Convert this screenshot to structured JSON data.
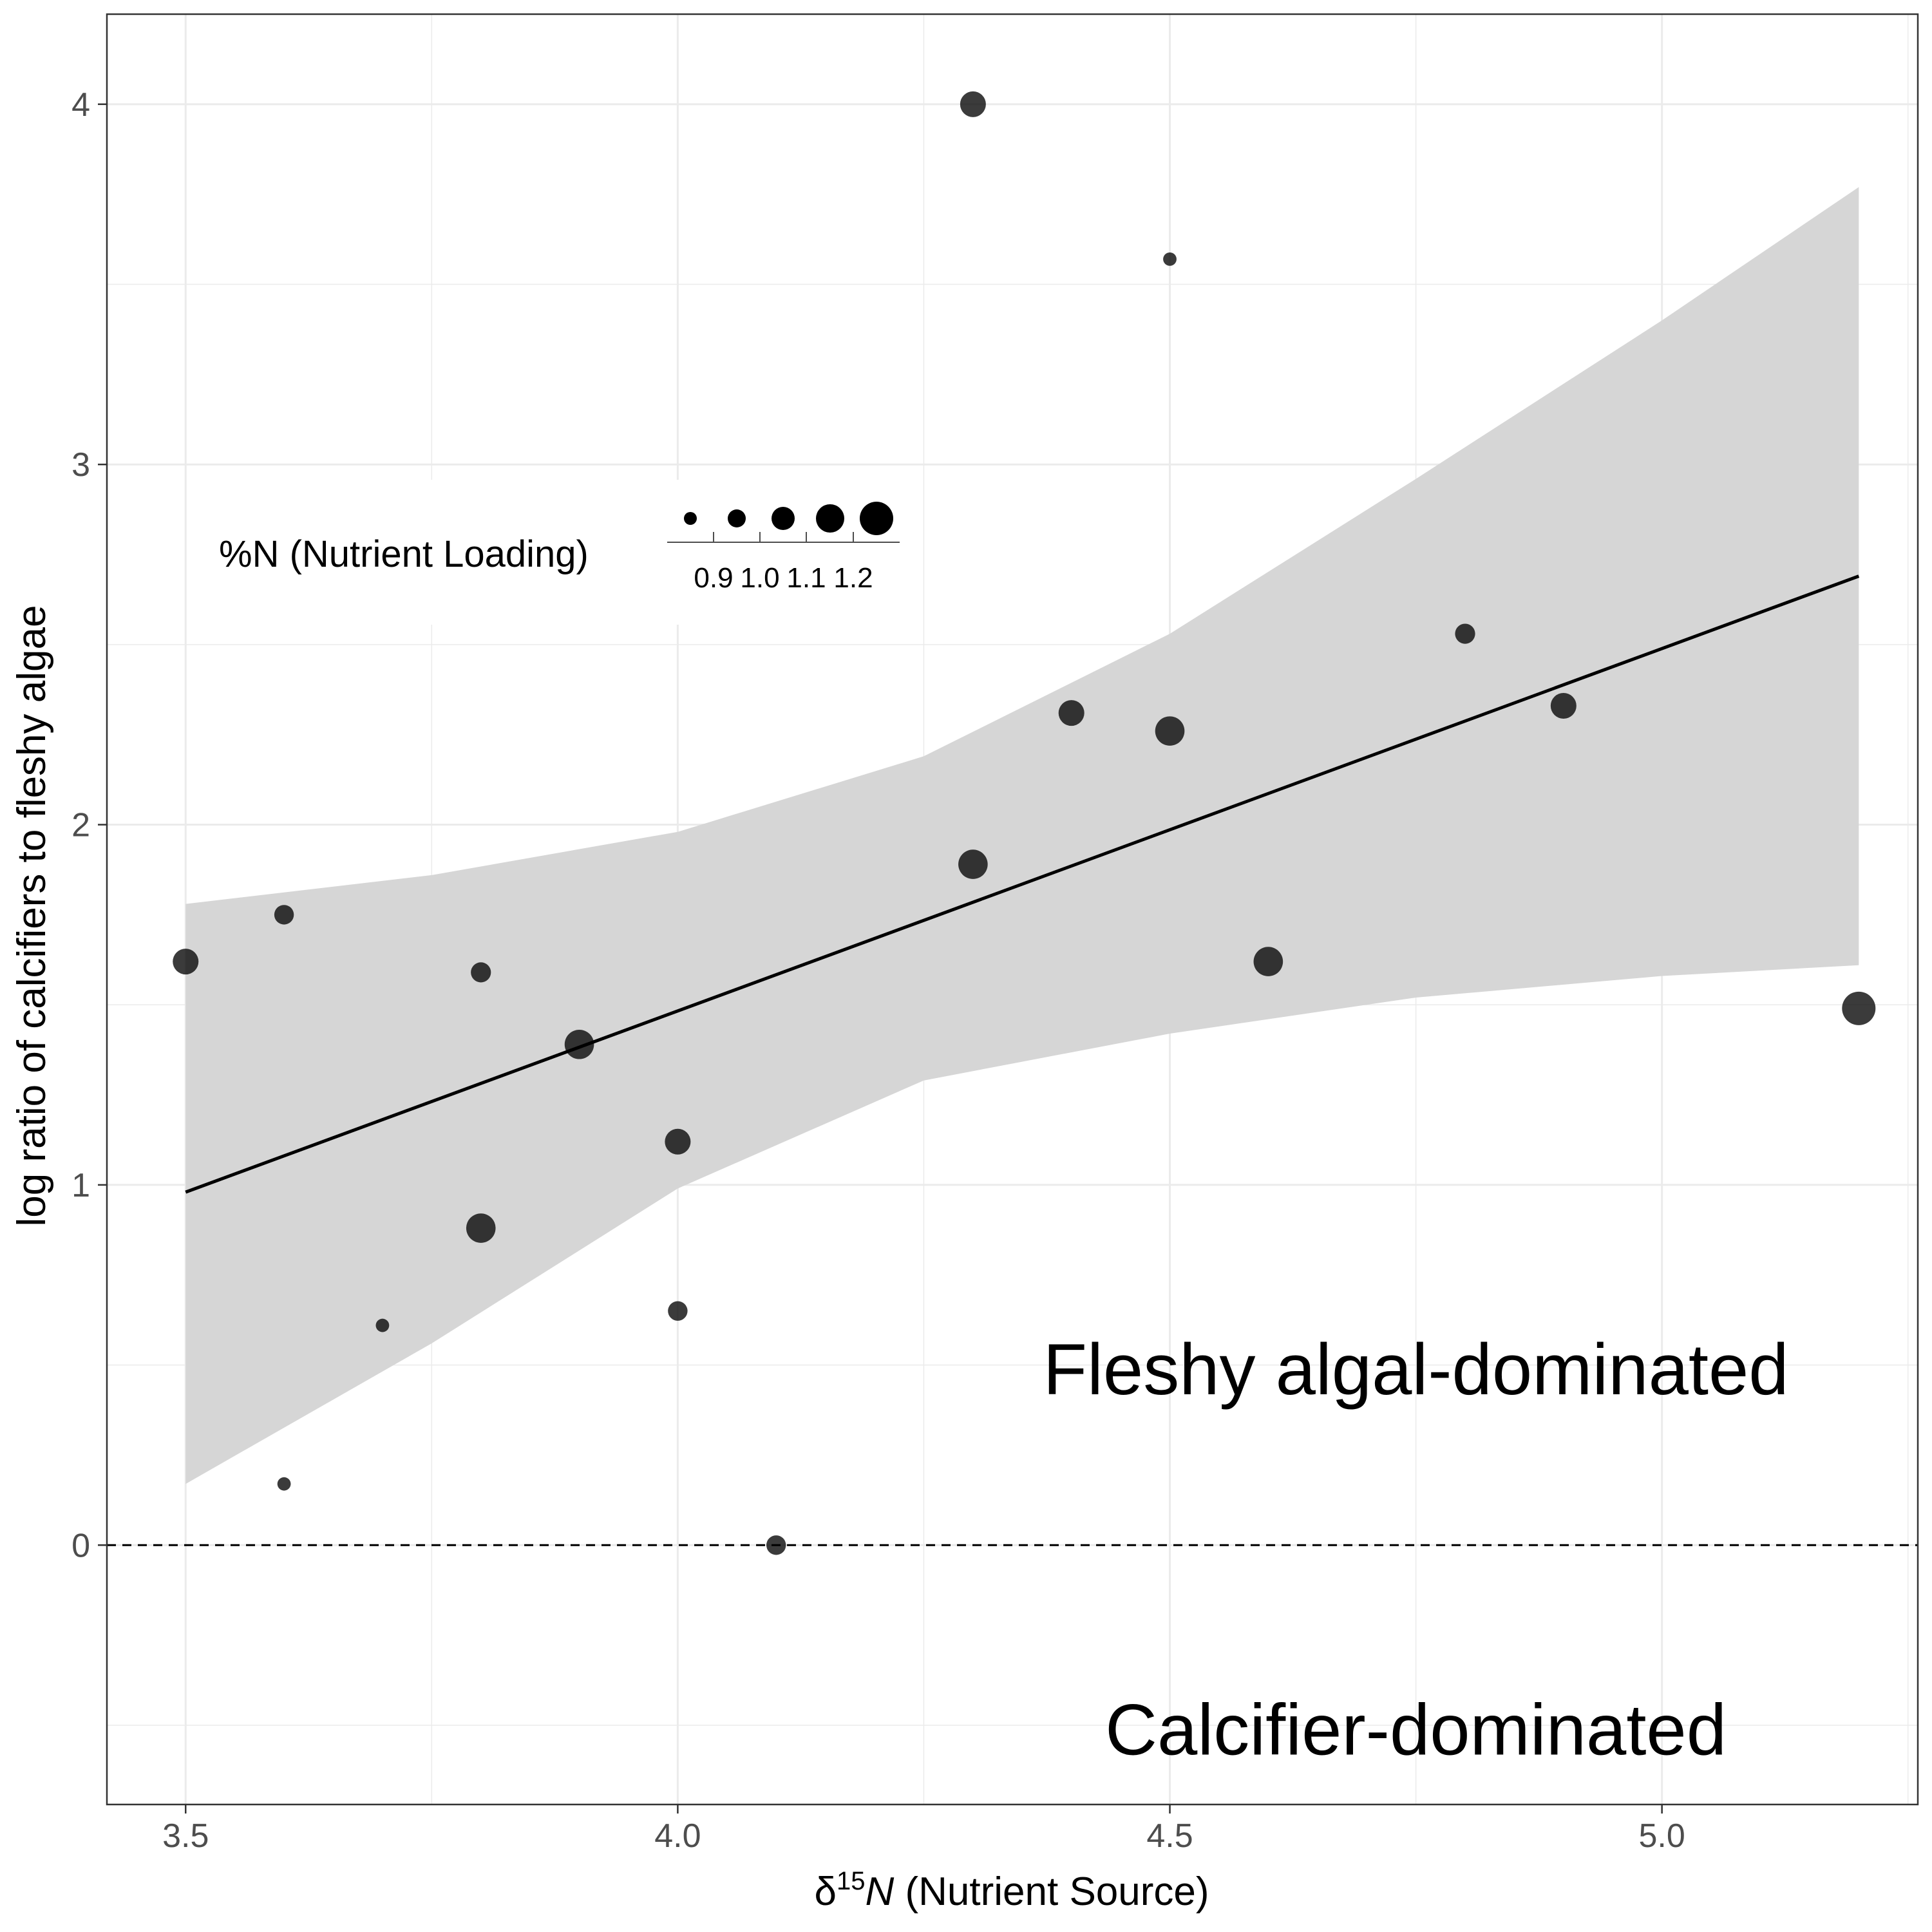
{
  "chart_data": {
    "type": "scatter",
    "xlabel": {
      "delta": "δ",
      "superscript": "15",
      "italic": "N",
      "rest": " (Nutrient Source)"
    },
    "ylabel": "log ratio of calcifiers to fleshy algae",
    "xlim": [
      3.42,
      5.26
    ],
    "ylim": [
      -0.72,
      4.25
    ],
    "x_ticks": [
      {
        "value": 3.5,
        "label": "3.5"
      },
      {
        "value": 4.0,
        "label": "4.0"
      },
      {
        "value": 4.5,
        "label": "4.5"
      },
      {
        "value": 5.0,
        "label": "5.0"
      }
    ],
    "y_ticks": [
      {
        "value": 0,
        "label": "0"
      },
      {
        "value": 1,
        "label": "1"
      },
      {
        "value": 2,
        "label": "2"
      },
      {
        "value": 3,
        "label": "3"
      },
      {
        "value": 4,
        "label": "4"
      }
    ],
    "minor_x": [
      3.75,
      4.25,
      4.75,
      5.25
    ],
    "minor_y": [
      -0.5,
      0.5,
      1.5,
      2.5,
      3.5
    ],
    "grid": true,
    "legend": {
      "title": "%N (Nutrient Loading)",
      "placement": "top-left",
      "labels": [
        "0.9",
        "1.0",
        "1.1",
        "1.2"
      ],
      "size_values": [
        0.85,
        0.95,
        1.05,
        1.15,
        1.25
      ]
    },
    "size_range_N": [
      0.85,
      1.25
    ],
    "points": [
      {
        "x": 3.5,
        "y": 1.62,
        "n": 1.1
      },
      {
        "x": 3.6,
        "y": 1.75,
        "n": 0.98
      },
      {
        "x": 3.6,
        "y": 0.17,
        "n": 0.86
      },
      {
        "x": 3.7,
        "y": 0.61,
        "n": 0.86
      },
      {
        "x": 3.8,
        "y": 1.59,
        "n": 0.99
      },
      {
        "x": 3.8,
        "y": 0.88,
        "n": 1.17
      },
      {
        "x": 3.9,
        "y": 1.39,
        "n": 1.17
      },
      {
        "x": 4.0,
        "y": 1.12,
        "n": 1.1
      },
      {
        "x": 4.0,
        "y": 0.65,
        "n": 0.98
      },
      {
        "x": 4.1,
        "y": 0.0,
        "n": 0.98
      },
      {
        "x": 4.3,
        "y": 4.0,
        "n": 1.1
      },
      {
        "x": 4.3,
        "y": 1.89,
        "n": 1.17
      },
      {
        "x": 4.4,
        "y": 2.31,
        "n": 1.1
      },
      {
        "x": 4.5,
        "y": 3.57,
        "n": 0.86
      },
      {
        "x": 4.5,
        "y": 2.26,
        "n": 1.17
      },
      {
        "x": 4.6,
        "y": 1.62,
        "n": 1.17
      },
      {
        "x": 4.8,
        "y": 2.53,
        "n": 0.99
      },
      {
        "x": 4.9,
        "y": 2.33,
        "n": 1.1
      },
      {
        "x": 5.2,
        "y": 1.49,
        "n": 1.25
      }
    ],
    "regression": {
      "x": [
        3.5,
        5.2
      ],
      "y": [
        0.98,
        2.69
      ]
    },
    "confidence_band": {
      "x": [
        3.5,
        3.75,
        4.0,
        4.25,
        4.5,
        4.75,
        5.0,
        5.2
      ],
      "upper": [
        1.78,
        1.86,
        1.98,
        2.19,
        2.53,
        2.96,
        3.4,
        3.77
      ],
      "lower": [
        0.17,
        0.56,
        0.99,
        1.29,
        1.42,
        1.52,
        1.58,
        1.61
      ]
    },
    "reference_line_y": 0,
    "annotations": [
      {
        "text": "Fleshy algal-dominated",
        "x": 4.75,
        "y": 0.49
      },
      {
        "text": "Calcifier-dominated",
        "x": 4.75,
        "y": -0.51
      }
    ],
    "colors": {
      "point": "#000000",
      "regression_line": "#000000",
      "band": "#d6d6d6",
      "grid": "#ebebeb",
      "panel_border": "#333333",
      "tick_label": "#4d4d4d"
    }
  }
}
